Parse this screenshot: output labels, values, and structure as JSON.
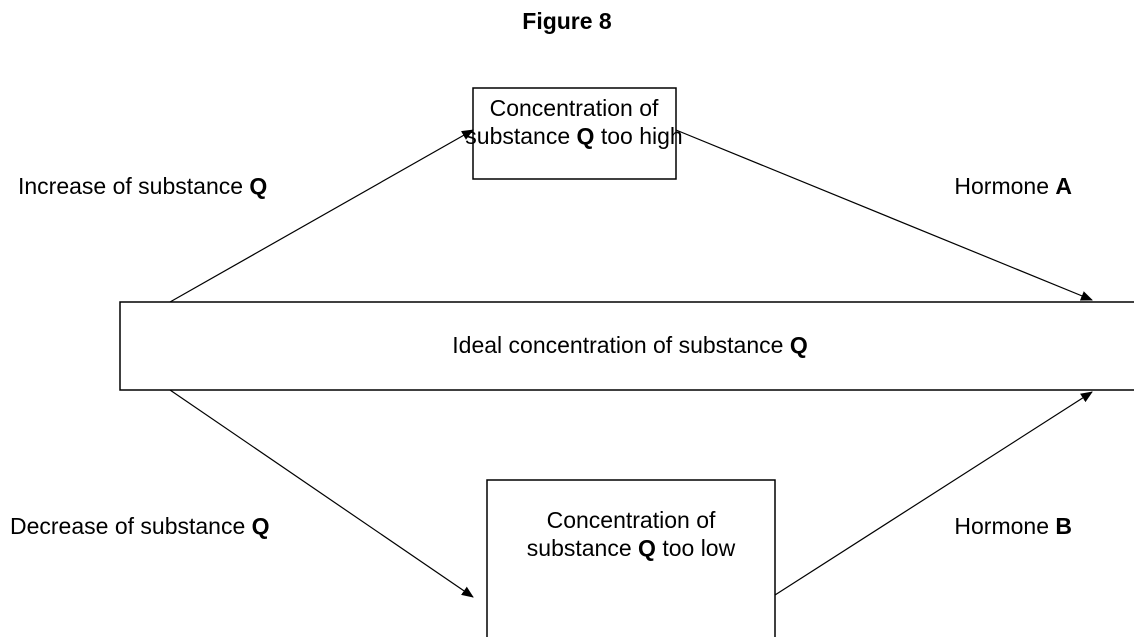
{
  "title": "Figure 8",
  "nodes": [
    {
      "lines": [
        [
          {
            "text": "Concentration of"
          }
        ],
        [
          {
            "text": "substance "
          },
          {
            "text": "Q",
            "bold": true
          },
          {
            "text": " too high"
          }
        ]
      ]
    },
    {
      "lines": [
        [
          {
            "text": "Ideal concentration of substance "
          },
          {
            "text": "Q",
            "bold": true
          }
        ]
      ]
    },
    {
      "lines": [
        [
          {
            "text": "Concentration of"
          }
        ],
        [
          {
            "text": "substance "
          },
          {
            "text": "Q",
            "bold": true
          },
          {
            "text": " too low"
          }
        ]
      ]
    }
  ],
  "edges": [
    {
      "label": [
        {
          "text": "Increase of substance "
        },
        {
          "text": "Q",
          "bold": true
        }
      ]
    },
    {
      "label": [
        {
          "text": "Hormone "
        },
        {
          "text": "A",
          "bold": true
        }
      ]
    },
    {
      "label": [
        {
          "text": "Decrease of substance "
        },
        {
          "text": "Q",
          "bold": true
        }
      ]
    },
    {
      "label": [
        {
          "text": "Hormone "
        },
        {
          "text": "B",
          "bold": true
        }
      ]
    }
  ]
}
